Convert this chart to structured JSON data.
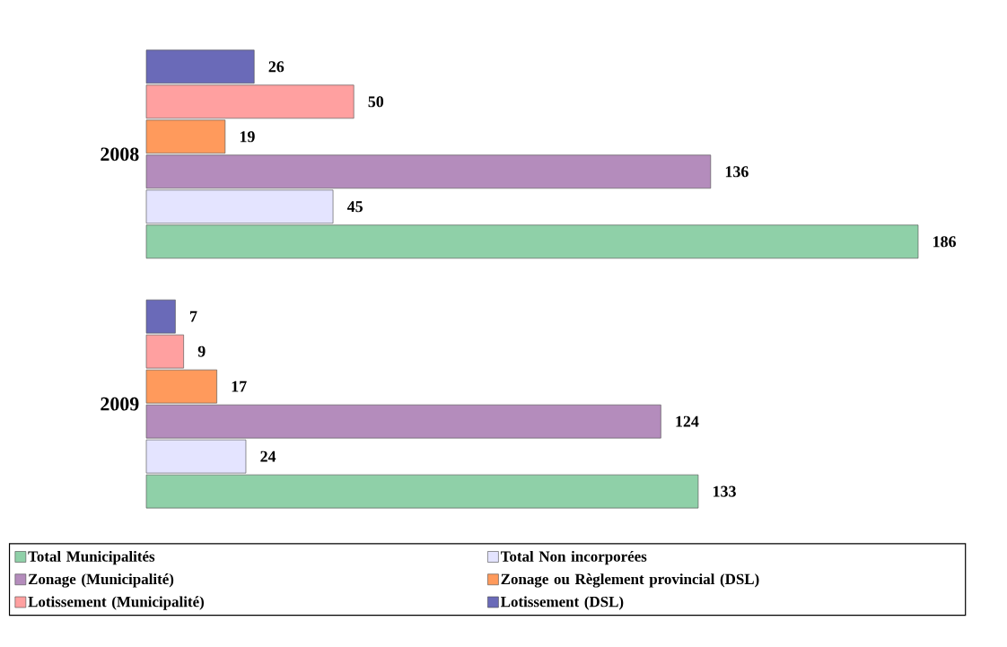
{
  "chart_data": {
    "type": "bar",
    "orientation": "horizontal",
    "categories": [
      "2008",
      "2009"
    ],
    "series": [
      {
        "name": "Total Municipalités",
        "color": "#8fd0a8",
        "values": [
          186,
          133
        ]
      },
      {
        "name": "Total Non incorporées",
        "color": "#e4e4ff",
        "values": [
          45,
          24
        ]
      },
      {
        "name": "Zonage (Municipalité)",
        "color": "#b48cbc",
        "values": [
          136,
          124
        ]
      },
      {
        "name": "Zonage ou Règlement provincial (DSL)",
        "color": "#ff9a5c",
        "values": [
          19,
          17
        ]
      },
      {
        "name": "Lotissement (Municipalité)",
        "color": "#ffa0a0",
        "values": [
          50,
          9
        ]
      },
      {
        "name": "Lotissement (DSL)",
        "color": "#6a6ab8",
        "values": [
          26,
          7
        ]
      }
    ],
    "data_labels": true,
    "legend": "bottom"
  }
}
